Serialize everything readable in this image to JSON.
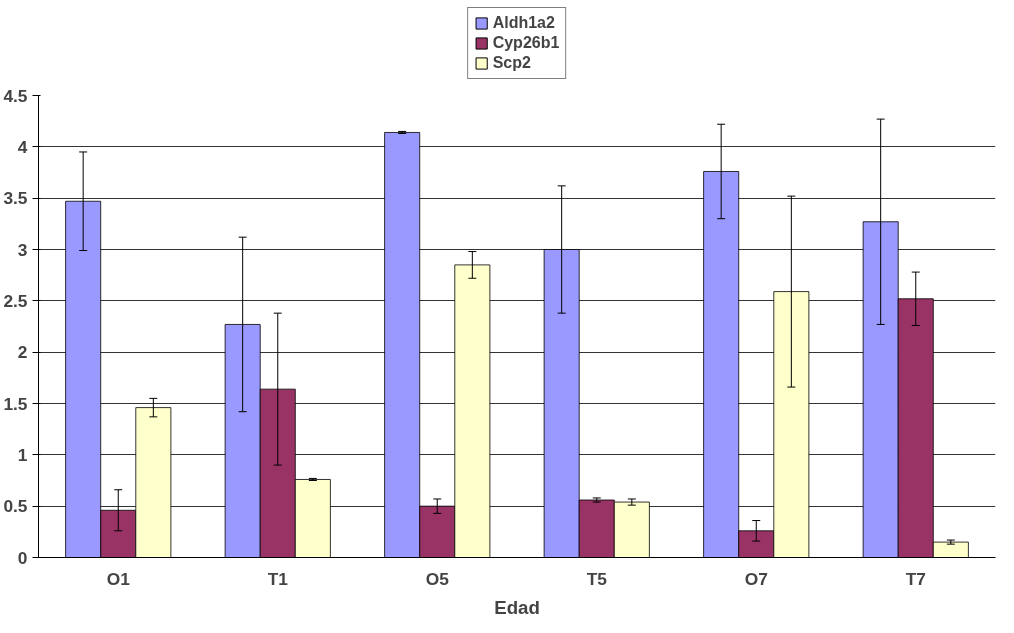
{
  "chart_data": {
    "type": "bar",
    "xlabel": "Edad",
    "categories": [
      "O1",
      "T1",
      "O5",
      "T5",
      "O7",
      "T7"
    ],
    "series": [
      {
        "name": "Aldh1a2",
        "color": "#9999ff",
        "values": [
          3.47,
          2.27,
          4.14,
          3.0,
          3.76,
          3.27
        ],
        "errors": [
          0.48,
          0.85,
          0.01,
          0.62,
          0.46,
          1.0
        ]
      },
      {
        "name": "Cyp26b1",
        "color": "#993366",
        "values": [
          0.46,
          1.64,
          0.5,
          0.56,
          0.26,
          2.52
        ],
        "errors": [
          0.2,
          0.74,
          0.07,
          0.02,
          0.1,
          0.26
        ]
      },
      {
        "name": "Scp2",
        "color": "#ffffcc",
        "values": [
          1.46,
          0.76,
          2.85,
          0.54,
          2.59,
          0.15
        ],
        "errors": [
          0.09,
          0.01,
          0.13,
          0.03,
          0.93,
          0.02
        ]
      }
    ],
    "ylim": [
      0,
      4.5
    ],
    "yticks": [
      0,
      0.5,
      1,
      1.5,
      2,
      2.5,
      3,
      3.5,
      4,
      4.5
    ],
    "grid": "y",
    "legend": "top"
  }
}
